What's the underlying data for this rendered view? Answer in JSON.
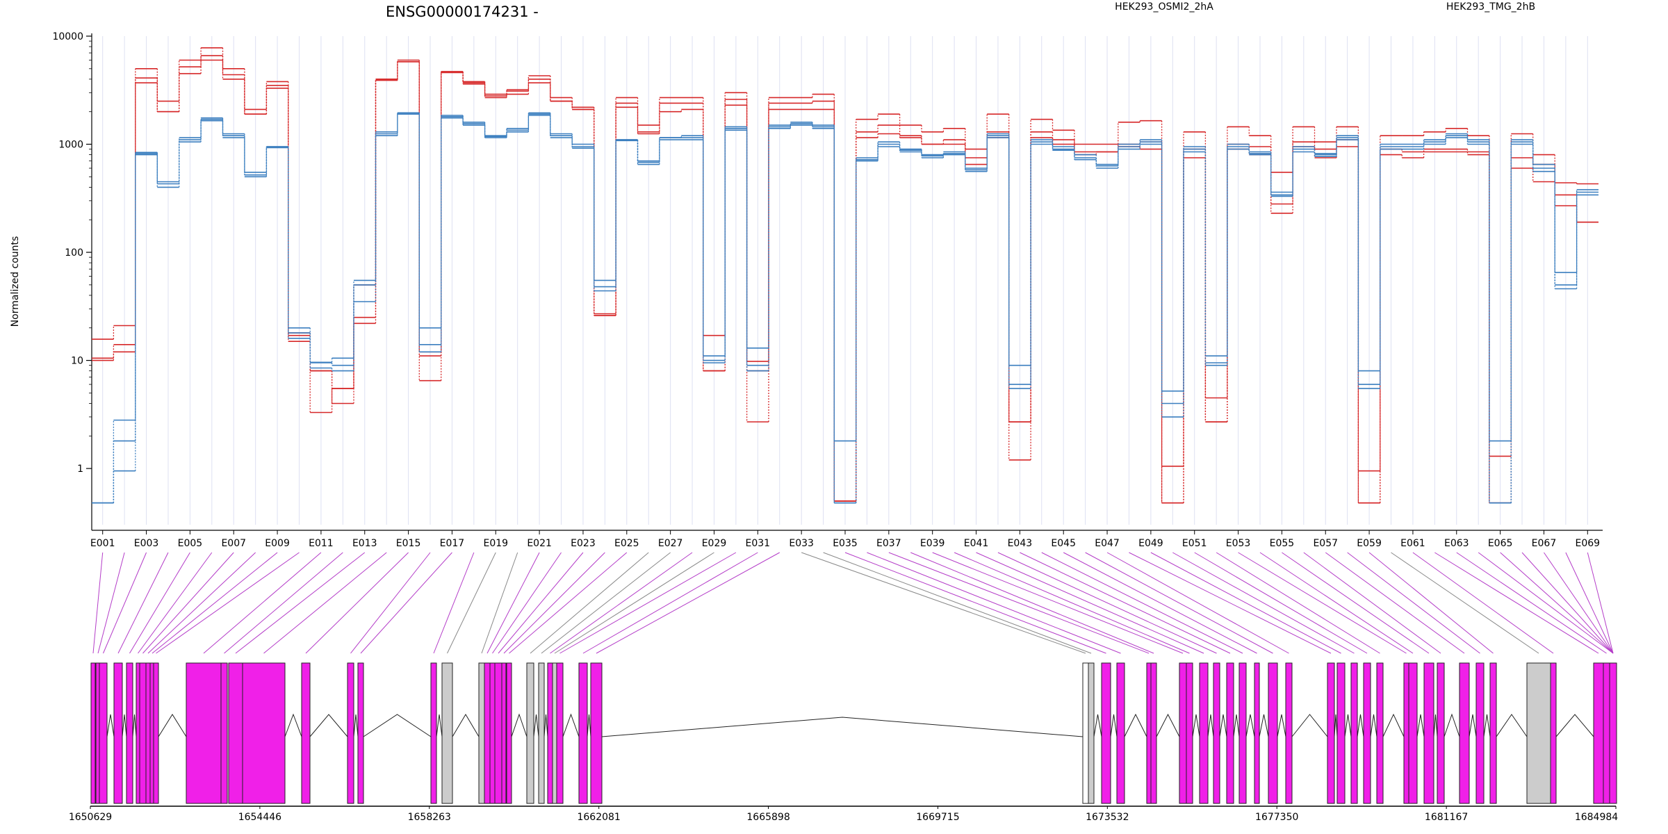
{
  "chart_data": {
    "type": "line",
    "title": "ENSG00000174231 -",
    "ylabel": "Normalized counts",
    "yscale": "log",
    "ylim": [
      0.35,
      10000
    ],
    "y_ticks": [
      1,
      10,
      100,
      1000,
      10000
    ],
    "y_tick_labels": [
      "1",
      "10",
      "100",
      "1000",
      "10000"
    ],
    "exon_labels": [
      "E001",
      "E003",
      "E005",
      "E007",
      "E009",
      "E011",
      "E013",
      "E015",
      "E017",
      "E019",
      "E021",
      "E023",
      "E025",
      "E027",
      "E029",
      "E031",
      "E033",
      "E035",
      "E037",
      "E039",
      "E041",
      "E043",
      "E045",
      "E047",
      "E049",
      "E051",
      "E053",
      "E055",
      "E057",
      "E059",
      "E061",
      "E063",
      "E065",
      "E067",
      "E069"
    ],
    "legend": [
      {
        "name": "HEK293_OSMI2_2hA",
        "color": "#d62728"
      },
      {
        "name": "HEK293_TMG_2hB",
        "color": "#3a7ebf"
      }
    ],
    "series_groups": [
      {
        "name": "HEK293_OSMI2_2hA",
        "color": "#d62728",
        "replicates": [
          [
            15.7,
            21,
            5000,
            2500,
            6000,
            7800,
            5000,
            2100,
            3800,
            18,
            8,
            5.5,
            50,
            4000,
            6000,
            12,
            4700,
            3800,
            2900,
            3200,
            4300,
            2700,
            2200,
            27,
            2700,
            1500,
            2700,
            2700,
            17,
            3000,
            9.8,
            2700,
            2700,
            2900,
            0.5,
            1700,
            1900,
            1500,
            1300,
            1400,
            900,
            1900,
            2.7,
            1700,
            1350,
            1000,
            1000,
            1600,
            1650,
            1.05,
            1300,
            4.5,
            1450,
            1200,
            550,
            1450,
            1050,
            1450,
            0.95,
            1200,
            1200,
            1300,
            1400,
            1200,
            1.3,
            1250,
            800,
            440,
            430
          ],
          [
            10.5,
            14,
            4100,
            2000,
            5200,
            6600,
            4400,
            1900,
            3500,
            17,
            8,
            4,
            25,
            3900,
            5800,
            11,
            4700,
            3700,
            2800,
            2900,
            4000,
            2500,
            2100,
            26,
            2400,
            1300,
            2400,
            2400,
            8,
            2600,
            8,
            2400,
            2400,
            2500,
            0.5,
            1300,
            1500,
            1200,
            1000,
            1100,
            750,
            1300,
            2.7,
            1300,
            1100,
            850,
            850,
            1000,
            1050,
            0.48,
            900,
            2.7,
            1000,
            950,
            280,
            1050,
            900,
            1100,
            0.48,
            900,
            850,
            900,
            900,
            850,
            0.48,
            750,
            650,
            340,
            190
          ],
          [
            10,
            12,
            3700,
            2000,
            4500,
            6000,
            4000,
            1900,
            3300,
            15,
            3.3,
            5.5,
            22,
            4000,
            5800,
            6.5,
            4600,
            3600,
            2700,
            3100,
            3700,
            2500,
            2100,
            26,
            2200,
            1250,
            2000,
            2100,
            8,
            2300,
            2.7,
            2100,
            2100,
            2100,
            0.5,
            1150,
            1250,
            1150,
            1000,
            1000,
            650,
            1150,
            1.2,
            1150,
            1000,
            800,
            850,
            950,
            900,
            0.48,
            750,
            2.7,
            900,
            800,
            230,
            950,
            750,
            950,
            0.48,
            800,
            750,
            850,
            850,
            800,
            0.48,
            600,
            450,
            270,
            190
          ]
        ]
      },
      {
        "name": "HEK293_TMG_2hB",
        "color": "#3a7ebf",
        "replicates": [
          [
            0.48,
            2.8,
            840,
            450,
            1150,
            1750,
            1250,
            550,
            950,
            20,
            9.6,
            10.5,
            55,
            1300,
            1950,
            20,
            1850,
            1600,
            1200,
            1400,
            1950,
            1250,
            1000,
            55,
            1100,
            700,
            1150,
            1200,
            11,
            1450,
            13,
            1500,
            1600,
            1500,
            1.8,
            750,
            1050,
            900,
            800,
            850,
            600,
            1250,
            9,
            1100,
            950,
            800,
            650,
            1000,
            1100,
            5.2,
            950,
            11,
            1000,
            850,
            360,
            950,
            820,
            1200,
            8,
            1000,
            1000,
            1100,
            1250,
            1100,
            1.8,
            1100,
            650,
            65,
            380
          ],
          [
            0.48,
            1.8,
            820,
            430,
            1100,
            1700,
            1200,
            520,
            950,
            18,
            9.5,
            9,
            50,
            1250,
            1950,
            14,
            1800,
            1550,
            1180,
            1350,
            1900,
            1200,
            950,
            48,
            1100,
            680,
            1150,
            1150,
            10,
            1400,
            9,
            1450,
            1550,
            1450,
            0.48,
            720,
            1000,
            880,
            780,
            820,
            580,
            1200,
            6,
            1050,
            900,
            750,
            630,
            950,
            1050,
            4,
            900,
            9.5,
            950,
            820,
            340,
            900,
            800,
            1150,
            6,
            950,
            950,
            1050,
            1200,
            1050,
            0.48,
            1050,
            600,
            50,
            360
          ],
          [
            0.48,
            0.95,
            800,
            400,
            1050,
            1650,
            1150,
            500,
            930,
            16,
            8.5,
            8,
            35,
            1200,
            1900,
            12,
            1750,
            1500,
            1150,
            1300,
            1850,
            1150,
            920,
            44,
            1080,
            650,
            1100,
            1100,
            9.5,
            1350,
            8,
            1400,
            1500,
            1400,
            0.48,
            700,
            950,
            850,
            750,
            800,
            560,
            1150,
            5.5,
            1000,
            880,
            720,
            600,
            900,
            1000,
            3,
            850,
            9,
            900,
            800,
            330,
            850,
            770,
            1100,
            5.5,
            900,
            900,
            1000,
            1150,
            1000,
            0.48,
            1000,
            560,
            46,
            340
          ]
        ]
      }
    ],
    "gene_model": {
      "coordinate_ticks": [
        "1650629",
        "1654446",
        "1658263",
        "1662081",
        "1665898",
        "1669715",
        "1673532",
        "1677350",
        "1681167",
        "1684984"
      ],
      "exon_colors": {
        "counted": "#f020e8",
        "excluded": "#cccccc"
      }
    }
  }
}
